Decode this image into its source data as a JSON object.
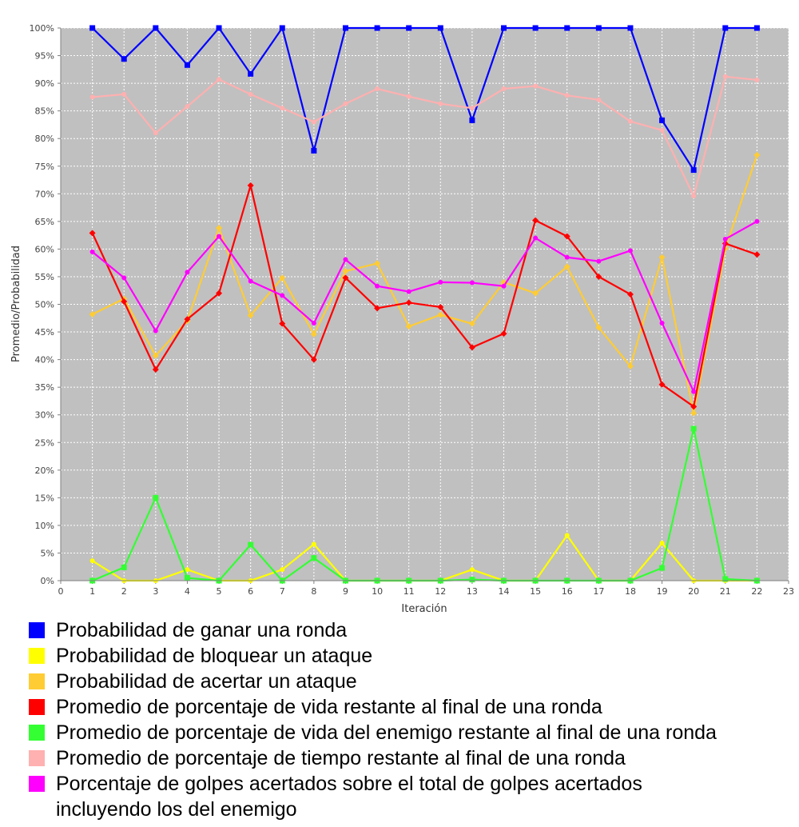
{
  "chart_data": {
    "type": "line",
    "title": "",
    "xlabel": "Iteración",
    "ylabel": "Promedio/Probabilidad",
    "xlim": [
      0,
      23
    ],
    "ylim": [
      0,
      100
    ],
    "x_ticks": [
      "0",
      "1",
      "2",
      "3",
      "4",
      "5",
      "6",
      "7",
      "8",
      "9",
      "10",
      "11",
      "12",
      "13",
      "14",
      "15",
      "16",
      "17",
      "18",
      "19",
      "20",
      "21",
      "22",
      "23"
    ],
    "y_ticks": [
      "0%",
      "5%",
      "10%",
      "15%",
      "20%",
      "25%",
      "30%",
      "35%",
      "40%",
      "45%",
      "50%",
      "55%",
      "60%",
      "65%",
      "70%",
      "75%",
      "80%",
      "85%",
      "90%",
      "95%",
      "100%"
    ],
    "grid": true,
    "legend_position": "bottom",
    "x": [
      1,
      2,
      3,
      4,
      5,
      6,
      7,
      8,
      9,
      10,
      11,
      12,
      13,
      14,
      15,
      16,
      17,
      18,
      19,
      20,
      21,
      22
    ],
    "series": [
      {
        "name": "Probabilidad de ganar una ronda",
        "color": "#0000ff",
        "marker": "square",
        "values": [
          100,
          94.4,
          100,
          93.3,
          100,
          91.7,
          100,
          77.8,
          100,
          100,
          100,
          100,
          83.3,
          100,
          100,
          100,
          100,
          100,
          83.3,
          74.3,
          100,
          100
        ]
      },
      {
        "name": "Probabilidad de bloquear un ataque",
        "color": "#ffff00",
        "marker": "circle",
        "values": [
          3.6,
          0,
          0,
          2,
          0,
          0,
          2,
          6.6,
          0,
          0,
          0,
          0,
          2,
          0,
          0,
          8.2,
          0,
          0,
          6.8,
          0,
          0,
          0
        ]
      },
      {
        "name": "Probabilidad de acertar un ataque",
        "color": "#ffcc33",
        "marker": "diamond",
        "values": [
          48.2,
          51,
          40.7,
          47,
          63.8,
          48,
          54.8,
          44.6,
          56,
          57.4,
          46,
          48.1,
          46.5,
          54,
          52,
          56.8,
          45.8,
          38.8,
          58.5,
          30.3,
          60.1,
          77
        ]
      },
      {
        "name": "Promedio de porcentaje de vida restante al final de una ronda",
        "color": "#ff0000",
        "marker": "diamond",
        "values": [
          62.9,
          50.5,
          38.2,
          47.3,
          52,
          71.5,
          46.5,
          40,
          54.8,
          49.3,
          50.3,
          49.5,
          42.2,
          44.7,
          65.2,
          62.3,
          55,
          51.8,
          35.5,
          31.5,
          61,
          59
        ]
      },
      {
        "name": "Promedio de porcentaje de vida del enemigo restante al final de una ronda",
        "color": "#33ff33",
        "marker": "square",
        "values": [
          0,
          2.4,
          15,
          0.5,
          0,
          6.5,
          0,
          4.1,
          0,
          0,
          0,
          0,
          0.2,
          0,
          0,
          0,
          0,
          0,
          2.3,
          27.5,
          0.3,
          0
        ]
      },
      {
        "name": "Promedio de porcentaje de tiempo restante al final de una ronda",
        "color": "#ffb0b0",
        "marker": "circle",
        "values": [
          87.5,
          88,
          81,
          85.8,
          90.7,
          88,
          85.5,
          83,
          86.3,
          89,
          87.6,
          86.3,
          85.5,
          89,
          89.5,
          87.8,
          87,
          83.1,
          81.5,
          69.6,
          91.2,
          90.6
        ]
      },
      {
        "name": "Porcentaje de golpes acertados sobre el total de golpes acertados\nincluyendo los del enemigo",
        "color": "#ff00ff",
        "marker": "circle",
        "values": [
          59.5,
          54.8,
          45.2,
          55.8,
          62.3,
          54.2,
          51.6,
          46.6,
          58.1,
          53.3,
          52.3,
          54,
          53.9,
          53.3,
          62,
          58.5,
          57.8,
          59.7,
          46.6,
          34.2,
          61.8,
          65
        ]
      }
    ]
  }
}
